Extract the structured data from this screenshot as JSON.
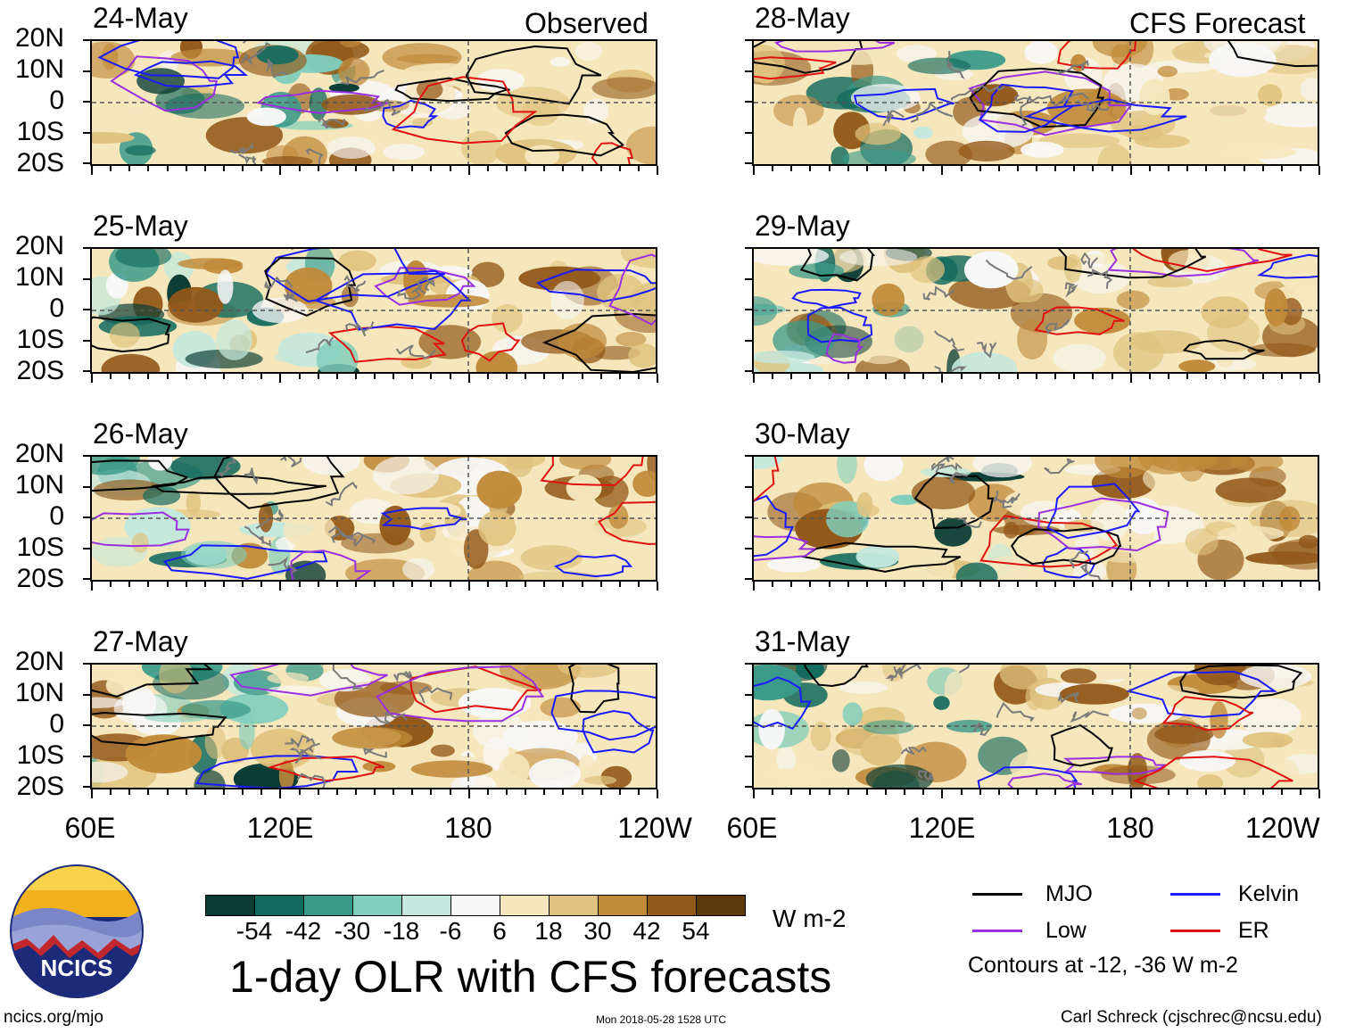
{
  "headers": {
    "left": "Observed",
    "right": "CFS Forecast"
  },
  "panels": {
    "left": [
      "24-May",
      "25-May",
      "26-May",
      "27-May"
    ],
    "right": [
      "28-May",
      "29-May",
      "30-May",
      "31-May"
    ]
  },
  "lat_labels": [
    "20N",
    "10N",
    "0",
    "10S",
    "20S"
  ],
  "lon_labels": [
    "60E",
    "120E",
    "180",
    "120W"
  ],
  "colorbar": {
    "colors": [
      "#0b3d35",
      "#136a5e",
      "#3a9a8a",
      "#7fcdbb",
      "#c4e8dd",
      "#f7f7f7",
      "#f5e6bc",
      "#dfc27d",
      "#c08a3a",
      "#93591a",
      "#5c3a0e"
    ],
    "labels": [
      "-54",
      "-42",
      "-30",
      "-18",
      "-6",
      "6",
      "18",
      "30",
      "42",
      "54"
    ],
    "unit": "W m-2"
  },
  "legend": {
    "items": [
      {
        "label": "MJO",
        "color": "#000000"
      },
      {
        "label": "Kelvin",
        "color": "#1a1aff"
      },
      {
        "label": "Low",
        "color": "#9b30e0"
      },
      {
        "label": "ER",
        "color": "#e01010"
      }
    ],
    "note": "Contours at -12, -36 W m-2"
  },
  "title": "1-day OLR with CFS forecasts",
  "logo_text": "NCICS",
  "footer": {
    "url": "ncics.org/mjo",
    "timestamp": "Mon 2018-05-28 1528 UTC",
    "author": "Carl Schreck (cjschrec@ncsu.edu)"
  }
}
